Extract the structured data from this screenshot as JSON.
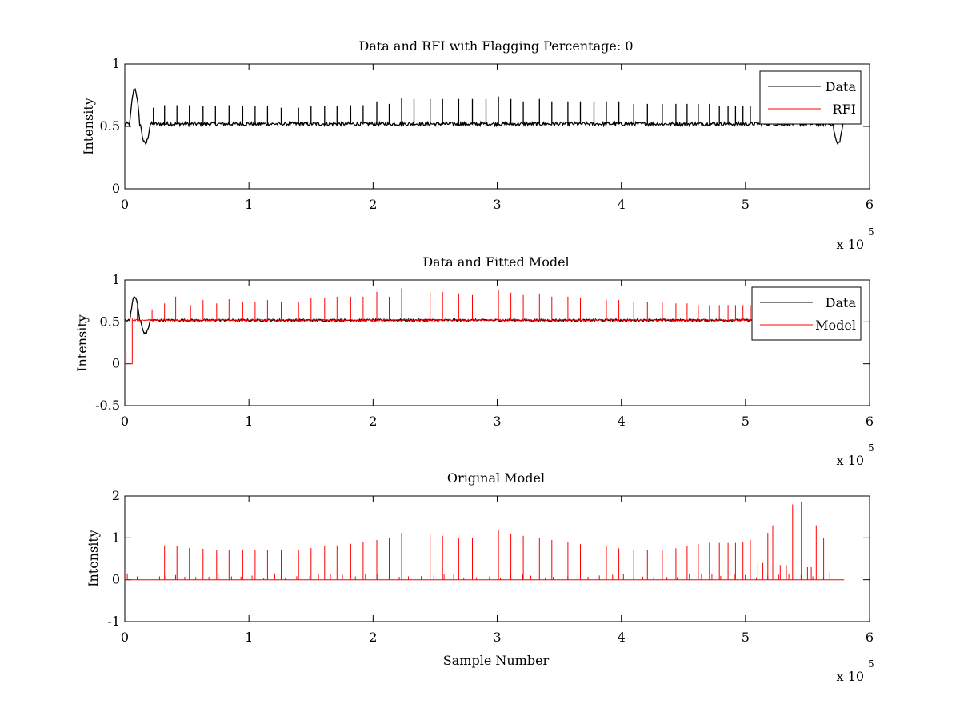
{
  "chart_data": [
    {
      "type": "line",
      "title": "Data and RFI with Flagging Percentage: 0",
      "xlabel": "",
      "ylabel": "Intensity",
      "xlim": [
        0,
        600000
      ],
      "ylim": [
        0,
        1
      ],
      "xticks": [
        0,
        100000,
        200000,
        300000,
        400000,
        500000,
        600000
      ],
      "xtick_labels": [
        "0",
        "1",
        "2",
        "3",
        "4",
        "5",
        "6"
      ],
      "yticks": [
        0,
        0.5,
        1
      ],
      "ytick_labels": [
        "0",
        "0.5",
        "1"
      ],
      "x_exponent_label": "x 10",
      "x_exponent_power": "5",
      "legend": {
        "position": "top-right",
        "entries": [
          "Data",
          "RFI"
        ]
      },
      "series": [
        {
          "name": "Data",
          "color": "#000000",
          "baseline": 0.52,
          "dips": [
            [
              8000,
              0.8
            ],
            [
              16500,
              0.36
            ],
            [
              574500,
              0.36
            ]
          ],
          "spikes": [
            [
              23000,
              0.65
            ],
            [
              32000,
              0.67
            ],
            [
              42000,
              0.67
            ],
            [
              52000,
              0.67
            ],
            [
              63000,
              0.66
            ],
            [
              73000,
              0.66
            ],
            [
              84000,
              0.67
            ],
            [
              95000,
              0.66
            ],
            [
              105000,
              0.66
            ],
            [
              115000,
              0.66
            ],
            [
              126000,
              0.65
            ],
            [
              140000,
              0.65
            ],
            [
              150000,
              0.66
            ],
            [
              161000,
              0.66
            ],
            [
              171000,
              0.66
            ],
            [
              182000,
              0.67
            ],
            [
              192000,
              0.67
            ],
            [
              203000,
              0.7
            ],
            [
              213000,
              0.68
            ],
            [
              223000,
              0.73
            ],
            [
              233000,
              0.72
            ],
            [
              246000,
              0.72
            ],
            [
              256000,
              0.72
            ],
            [
              269000,
              0.72
            ],
            [
              280000,
              0.72
            ],
            [
              291000,
              0.72
            ],
            [
              301000,
              0.74
            ],
            [
              311000,
              0.72
            ],
            [
              321000,
              0.7
            ],
            [
              334000,
              0.72
            ],
            [
              344000,
              0.7
            ],
            [
              357000,
              0.7
            ],
            [
              367000,
              0.7
            ],
            [
              378000,
              0.7
            ],
            [
              388000,
              0.7
            ],
            [
              398000,
              0.7
            ],
            [
              410000,
              0.68
            ],
            [
              421000,
              0.68
            ],
            [
              433000,
              0.68
            ],
            [
              444000,
              0.68
            ],
            [
              453000,
              0.68
            ],
            [
              462000,
              0.68
            ],
            [
              471000,
              0.68
            ],
            [
              479000,
              0.66
            ],
            [
              486000,
              0.66
            ],
            [
              492000,
              0.66
            ],
            [
              498000,
              0.66
            ],
            [
              504000,
              0.66
            ]
          ]
        },
        {
          "name": "RFI",
          "color": "#ff0000"
        }
      ]
    },
    {
      "type": "line",
      "title": "Data and Fitted Model",
      "xlabel": "",
      "ylabel": "Intensity",
      "xlim": [
        0,
        600000
      ],
      "ylim": [
        -0.5,
        1
      ],
      "xticks": [
        0,
        100000,
        200000,
        300000,
        400000,
        500000,
        600000
      ],
      "xtick_labels": [
        "0",
        "1",
        "2",
        "3",
        "4",
        "5",
        "6"
      ],
      "yticks": [
        -0.5,
        0,
        0.5,
        1
      ],
      "ytick_labels": [
        "-0.5",
        "0",
        "0.5",
        "1"
      ],
      "x_exponent_label": "x 10",
      "x_exponent_power": "5",
      "legend": {
        "position": "top-right",
        "entries": [
          "Data",
          "Model"
        ]
      },
      "series": [
        {
          "name": "Data",
          "color": "#000000"
        },
        {
          "name": "Model",
          "color": "#ff0000",
          "baseline": 0.52,
          "spikes": [
            [
              6000,
              0.55
            ],
            [
              10000,
              0.72
            ],
            [
              22000,
              0.65
            ],
            [
              32000,
              0.72
            ],
            [
              41000,
              0.8
            ],
            [
              53000,
              0.7
            ],
            [
              63000,
              0.76
            ],
            [
              74000,
              0.72
            ],
            [
              84000,
              0.77
            ],
            [
              95000,
              0.74
            ],
            [
              105000,
              0.74
            ],
            [
              115000,
              0.76
            ],
            [
              126000,
              0.74
            ],
            [
              140000,
              0.74
            ],
            [
              150000,
              0.78
            ],
            [
              161000,
              0.78
            ],
            [
              171000,
              0.8
            ],
            [
              182000,
              0.8
            ],
            [
              192000,
              0.8
            ],
            [
              203000,
              0.86
            ],
            [
              213000,
              0.8
            ],
            [
              223000,
              0.9
            ],
            [
              233000,
              0.85
            ],
            [
              246000,
              0.86
            ],
            [
              256000,
              0.86
            ],
            [
              269000,
              0.84
            ],
            [
              280000,
              0.82
            ],
            [
              291000,
              0.86
            ],
            [
              301000,
              0.88
            ],
            [
              311000,
              0.85
            ],
            [
              321000,
              0.82
            ],
            [
              334000,
              0.84
            ],
            [
              344000,
              0.8
            ],
            [
              357000,
              0.8
            ],
            [
              367000,
              0.78
            ],
            [
              378000,
              0.76
            ],
            [
              388000,
              0.76
            ],
            [
              398000,
              0.76
            ],
            [
              410000,
              0.74
            ],
            [
              421000,
              0.74
            ],
            [
              433000,
              0.74
            ],
            [
              444000,
              0.72
            ],
            [
              453000,
              0.72
            ],
            [
              462000,
              0.7
            ],
            [
              471000,
              0.7
            ],
            [
              479000,
              0.7
            ],
            [
              486000,
              0.7
            ],
            [
              492000,
              0.7
            ],
            [
              498000,
              0.7
            ],
            [
              504000,
              0.7
            ]
          ],
          "leading_zero_range": [
            0,
            6000
          ]
        }
      ]
    },
    {
      "type": "line",
      "title": "Original Model",
      "xlabel": "Sample Number",
      "ylabel": "Intensity",
      "xlim": [
        0,
        600000
      ],
      "ylim": [
        -1,
        2
      ],
      "xticks": [
        0,
        100000,
        200000,
        300000,
        400000,
        500000,
        600000
      ],
      "xtick_labels": [
        "0",
        "1",
        "2",
        "3",
        "4",
        "5",
        "6"
      ],
      "yticks": [
        -1,
        0,
        1,
        2
      ],
      "ytick_labels": [
        "-1",
        "0",
        "1",
        "2"
      ],
      "x_exponent_label": "x 10",
      "x_exponent_power": "5",
      "series": [
        {
          "name": "Original Model",
          "color": "#ff0000",
          "baseline": 0,
          "spikes": [
            [
              2000,
              0.15
            ],
            [
              10000,
              0.08
            ],
            [
              28000,
              0.08
            ],
            [
              32000,
              0.82
            ],
            [
              42000,
              0.8
            ],
            [
              52000,
              0.76
            ],
            [
              63000,
              0.74
            ],
            [
              74000,
              0.72
            ],
            [
              84000,
              0.7
            ],
            [
              95000,
              0.72
            ],
            [
              105000,
              0.7
            ],
            [
              115000,
              0.7
            ],
            [
              126000,
              0.7
            ],
            [
              140000,
              0.72
            ],
            [
              150000,
              0.76
            ],
            [
              161000,
              0.8
            ],
            [
              171000,
              0.82
            ],
            [
              182000,
              0.86
            ],
            [
              192000,
              0.9
            ],
            [
              203000,
              0.95
            ],
            [
              213000,
              1.0
            ],
            [
              223000,
              1.12
            ],
            [
              233000,
              1.15
            ],
            [
              246000,
              1.08
            ],
            [
              256000,
              1.05
            ],
            [
              269000,
              1.0
            ],
            [
              280000,
              1.0
            ],
            [
              291000,
              1.15
            ],
            [
              301000,
              1.18
            ],
            [
              311000,
              1.1
            ],
            [
              321000,
              1.05
            ],
            [
              334000,
              1.0
            ],
            [
              344000,
              0.95
            ],
            [
              357000,
              0.9
            ],
            [
              367000,
              0.85
            ],
            [
              378000,
              0.82
            ],
            [
              388000,
              0.8
            ],
            [
              398000,
              0.75
            ],
            [
              410000,
              0.72
            ],
            [
              421000,
              0.7
            ],
            [
              433000,
              0.72
            ],
            [
              444000,
              0.75
            ],
            [
              453000,
              0.8
            ],
            [
              462000,
              0.85
            ],
            [
              471000,
              0.88
            ],
            [
              479000,
              0.88
            ],
            [
              486000,
              0.88
            ],
            [
              492000,
              0.88
            ],
            [
              498000,
              0.9
            ],
            [
              504000,
              0.95
            ],
            [
              510000,
              0.42
            ],
            [
              514000,
              0.4
            ],
            [
              518000,
              1.12
            ],
            [
              522000,
              1.3
            ],
            [
              528000,
              0.35
            ],
            [
              533000,
              0.35
            ],
            [
              538000,
              1.8
            ],
            [
              545000,
              1.85
            ],
            [
              550000,
              0.3
            ],
            [
              553000,
              0.3
            ],
            [
              557000,
              1.3
            ],
            [
              563000,
              1.0
            ],
            [
              568000,
              0.18
            ]
          ],
          "end_x": 580000
        }
      ]
    }
  ]
}
